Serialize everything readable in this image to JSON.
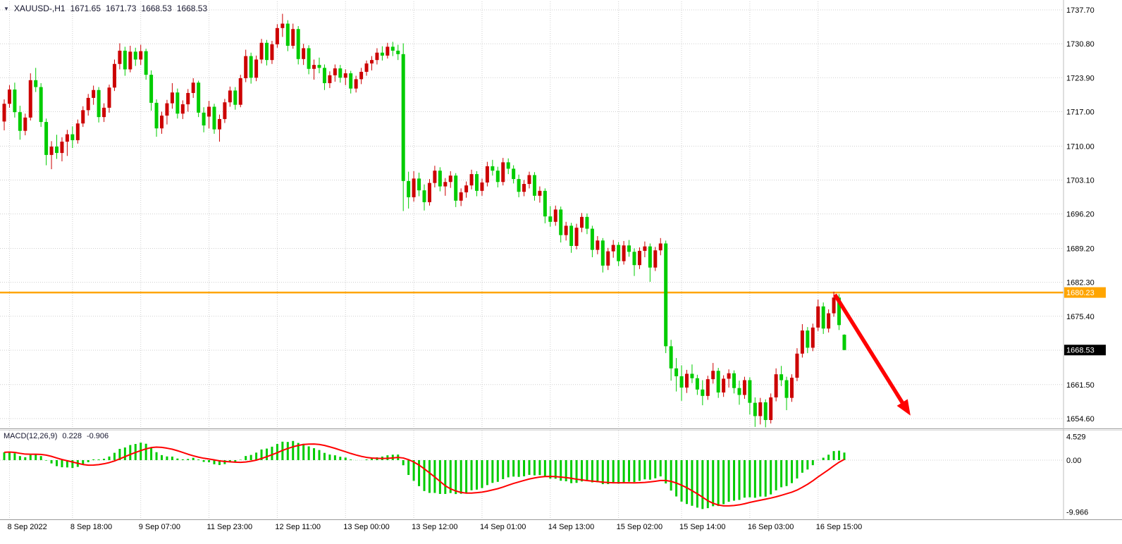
{
  "header": {
    "dropdown_icon": "▼",
    "symbol": "XAUUSD-,H1",
    "open": "1671.65",
    "high": "1671.73",
    "low": "1668.53",
    "close": "1668.53"
  },
  "indicator_header": {
    "label": "MACD(12,26,9)",
    "main_value": "0.228",
    "signal_value": "-0.906"
  },
  "price_axis": {
    "labels": [
      "1737.70",
      "1730.80",
      "1723.90",
      "1717.00",
      "1710.00",
      "1703.10",
      "1696.20",
      "1689.20",
      "1682.30",
      "1675.40",
      "1661.50",
      "1654.60"
    ],
    "current": {
      "text": "1668.53",
      "value": 1668.53
    },
    "hline_label": {
      "text": "1680.23",
      "value": 1680.23
    }
  },
  "macd_axis": {
    "labels": [
      {
        "text": "4.529",
        "value": 4.529
      },
      {
        "text": "0.00",
        "value": 0
      },
      {
        "text": "-9.966",
        "value": -9.966
      }
    ]
  },
  "time_axis": {
    "labels": [
      {
        "text": "8 Sep 2022",
        "index": 1
      },
      {
        "text": "8 Sep 18:00",
        "index": 13
      },
      {
        "text": "9 Sep 07:00",
        "index": 26
      },
      {
        "text": "11 Sep 23:00",
        "index": 39
      },
      {
        "text": "12 Sep 11:00",
        "index": 52
      },
      {
        "text": "13 Sep 00:00",
        "index": 65
      },
      {
        "text": "13 Sep 12:00",
        "index": 78
      },
      {
        "text": "14 Sep 01:00",
        "index": 91
      },
      {
        "text": "14 Sep 13:00",
        "index": 104
      },
      {
        "text": "15 Sep 02:00",
        "index": 117
      },
      {
        "text": "15 Sep 14:00",
        "index": 129
      },
      {
        "text": "16 Sep 03:00",
        "index": 142
      },
      {
        "text": "16 Sep 15:00",
        "index": 155
      }
    ]
  },
  "chart_data": {
    "type": "candlestick",
    "symbol": "XAUUSD-",
    "timeframe": "H1",
    "current_ohlc": {
      "open": 1671.65,
      "high": 1671.73,
      "low": 1668.53,
      "close": 1668.53
    },
    "price_grid": [
      1737.7,
      1730.8,
      1723.9,
      1717.0,
      1710.0,
      1703.1,
      1696.2,
      1689.2,
      1682.3,
      1675.4,
      1668.5,
      1661.5,
      1654.6
    ],
    "macd": {
      "params": [
        12,
        26,
        9
      ],
      "main_last": 0.228,
      "signal_last": -0.906,
      "axis_max": 4.529,
      "axis_min": -9.966
    },
    "annotations": [
      {
        "type": "hline",
        "price": 1680.23,
        "color": "#FFA500",
        "label": "1680.23"
      },
      {
        "type": "arrow",
        "from_index": 158.2,
        "from_price": 1679.8,
        "to_index": 172.6,
        "to_price": 1655.2,
        "color": "#FF0000",
        "direction": "down-right"
      }
    ],
    "colors": {
      "bull": "#CC0000",
      "bear": "#00CC00",
      "grid": "#CFCFCF",
      "macd_hist": "#00CC00",
      "macd_signal": "#FF0000",
      "current_price_bg": "#000000",
      "hline_label_bg": "#FFA500",
      "axis_text": "#000000"
    },
    "candles": [
      [
        1715.0,
        1719.5,
        1713.2,
        1718.6
      ],
      [
        1718.6,
        1722.4,
        1717.8,
        1721.5
      ],
      [
        1721.5,
        1722.9,
        1715.8,
        1716.9
      ],
      [
        1716.9,
        1718.2,
        1711.3,
        1713.1
      ],
      [
        1713.1,
        1716.6,
        1712.2,
        1715.8
      ],
      [
        1715.8,
        1724.8,
        1715.2,
        1723.4
      ],
      [
        1723.4,
        1725.9,
        1721.0,
        1722.0
      ],
      [
        1722.0,
        1722.8,
        1713.9,
        1714.9
      ],
      [
        1714.9,
        1715.6,
        1706.1,
        1708.2
      ],
      [
        1708.2,
        1711.0,
        1705.3,
        1709.9
      ],
      [
        1709.9,
        1712.3,
        1707.4,
        1708.6
      ],
      [
        1708.6,
        1711.8,
        1706.9,
        1710.9
      ],
      [
        1710.9,
        1713.3,
        1708.0,
        1712.4
      ],
      [
        1712.4,
        1714.0,
        1709.6,
        1711.2
      ],
      [
        1711.2,
        1715.4,
        1710.5,
        1714.6
      ],
      [
        1714.6,
        1718.1,
        1713.9,
        1717.3
      ],
      [
        1717.3,
        1720.6,
        1716.2,
        1719.8
      ],
      [
        1719.8,
        1722.3,
        1718.4,
        1721.4
      ],
      [
        1721.4,
        1722.0,
        1714.8,
        1715.9
      ],
      [
        1715.9,
        1718.7,
        1714.9,
        1717.8
      ],
      [
        1717.8,
        1722.5,
        1716.8,
        1721.9
      ],
      [
        1721.9,
        1727.6,
        1721.2,
        1726.7
      ],
      [
        1726.7,
        1730.9,
        1725.6,
        1729.4
      ],
      [
        1729.4,
        1730.2,
        1724.3,
        1725.6
      ],
      [
        1725.6,
        1730.4,
        1725.0,
        1729.2
      ],
      [
        1729.2,
        1730.0,
        1726.3,
        1727.6
      ],
      [
        1727.6,
        1730.6,
        1726.5,
        1729.3
      ],
      [
        1729.3,
        1729.8,
        1723.5,
        1724.5
      ],
      [
        1724.5,
        1725.4,
        1717.2,
        1718.8
      ],
      [
        1718.8,
        1719.5,
        1711.9,
        1713.6
      ],
      [
        1713.6,
        1717.0,
        1712.5,
        1716.2
      ],
      [
        1716.2,
        1719.4,
        1714.4,
        1718.7
      ],
      [
        1718.7,
        1722.8,
        1717.6,
        1720.9
      ],
      [
        1720.9,
        1721.7,
        1715.6,
        1716.6
      ],
      [
        1716.6,
        1719.3,
        1715.5,
        1718.5
      ],
      [
        1718.5,
        1721.6,
        1717.0,
        1720.8
      ],
      [
        1720.8,
        1723.8,
        1719.8,
        1722.9
      ],
      [
        1722.9,
        1723.3,
        1715.9,
        1716.8
      ],
      [
        1716.8,
        1717.9,
        1712.8,
        1714.2
      ],
      [
        1716.0,
        1719.2,
        1713.6,
        1718.0
      ],
      [
        1718.0,
        1718.6,
        1712.5,
        1713.4
      ],
      [
        1713.4,
        1716.4,
        1710.9,
        1715.5
      ],
      [
        1715.5,
        1719.6,
        1714.7,
        1718.9
      ],
      [
        1718.9,
        1722.1,
        1718.0,
        1721.3
      ],
      [
        1721.3,
        1722.0,
        1717.4,
        1718.4
      ],
      [
        1718.4,
        1724.5,
        1717.9,
        1723.8
      ],
      [
        1723.8,
        1729.6,
        1723.0,
        1728.3
      ],
      [
        1728.3,
        1729.0,
        1722.7,
        1723.9
      ],
      [
        1723.9,
        1728.4,
        1723.2,
        1727.6
      ],
      [
        1727.6,
        1731.8,
        1726.8,
        1731.0
      ],
      [
        1731.0,
        1731.6,
        1726.4,
        1727.5
      ],
      [
        1727.5,
        1731.4,
        1726.7,
        1730.7
      ],
      [
        1730.7,
        1734.8,
        1730.0,
        1734.0
      ],
      [
        1734.0,
        1736.9,
        1732.2,
        1734.9
      ],
      [
        1734.9,
        1735.6,
        1729.3,
        1730.4
      ],
      [
        1730.4,
        1734.9,
        1729.8,
        1733.8
      ],
      [
        1733.8,
        1734.4,
        1726.6,
        1727.7
      ],
      [
        1727.7,
        1730.8,
        1726.5,
        1729.9
      ],
      [
        1729.9,
        1730.5,
        1724.6,
        1725.7
      ],
      [
        1725.7,
        1727.6,
        1723.5,
        1726.5
      ],
      [
        1726.5,
        1728.0,
        1724.8,
        1725.9
      ],
      [
        1725.9,
        1726.6,
        1721.4,
        1722.8
      ],
      [
        1722.8,
        1725.2,
        1721.8,
        1724.4
      ],
      [
        1724.4,
        1726.6,
        1723.1,
        1725.8
      ],
      [
        1725.8,
        1726.5,
        1722.9,
        1723.9
      ],
      [
        1723.9,
        1725.6,
        1722.4,
        1724.8
      ],
      [
        1724.8,
        1725.3,
        1720.7,
        1721.7
      ],
      [
        1721.7,
        1724.3,
        1720.9,
        1723.6
      ],
      [
        1723.6,
        1725.9,
        1722.6,
        1725.1
      ],
      [
        1725.1,
        1727.4,
        1724.3,
        1726.8
      ],
      [
        1726.8,
        1728.3,
        1725.4,
        1727.5
      ],
      [
        1727.5,
        1729.9,
        1726.6,
        1729.0
      ],
      [
        1729.0,
        1730.3,
        1727.4,
        1728.4
      ],
      [
        1728.4,
        1731.0,
        1727.8,
        1730.2
      ],
      [
        1730.2,
        1731.2,
        1728.3,
        1729.4
      ],
      [
        1729.4,
        1730.6,
        1727.5,
        1728.7
      ],
      [
        1728.7,
        1730.9,
        1696.8,
        1702.9
      ],
      [
        1702.9,
        1704.8,
        1697.3,
        1699.6
      ],
      [
        1699.6,
        1704.9,
        1698.7,
        1703.4
      ],
      [
        1703.4,
        1704.6,
        1699.8,
        1701.0
      ],
      [
        1701.0,
        1702.2,
        1696.9,
        1698.6
      ],
      [
        1698.6,
        1703.3,
        1697.9,
        1702.5
      ],
      [
        1702.5,
        1706.0,
        1701.6,
        1705.0
      ],
      [
        1705.0,
        1705.7,
        1700.8,
        1701.8
      ],
      [
        1701.8,
        1703.5,
        1699.9,
        1702.7
      ],
      [
        1702.7,
        1704.9,
        1701.5,
        1704.0
      ],
      [
        1704.0,
        1704.5,
        1697.6,
        1698.9
      ],
      [
        1698.9,
        1701.4,
        1697.8,
        1700.6
      ],
      [
        1700.6,
        1702.8,
        1699.5,
        1702.0
      ],
      [
        1702.0,
        1705.2,
        1701.2,
        1704.3
      ],
      [
        1704.3,
        1704.9,
        1699.8,
        1700.9
      ],
      [
        1700.9,
        1703.4,
        1699.9,
        1702.6
      ],
      [
        1702.6,
        1706.8,
        1701.8,
        1705.9
      ],
      [
        1705.9,
        1707.2,
        1704.0,
        1705.0
      ],
      [
        1705.0,
        1705.8,
        1701.6,
        1702.7
      ],
      [
        1702.7,
        1707.6,
        1702.0,
        1706.7
      ],
      [
        1706.7,
        1707.5,
        1704.3,
        1705.4
      ],
      [
        1705.4,
        1706.1,
        1702.4,
        1703.3
      ],
      [
        1703.3,
        1704.2,
        1699.6,
        1700.7
      ],
      [
        1700.7,
        1703.1,
        1699.8,
        1702.3
      ],
      [
        1702.3,
        1704.8,
        1701.4,
        1704.1
      ],
      [
        1704.1,
        1704.7,
        1698.9,
        1699.9
      ],
      [
        1699.9,
        1701.8,
        1698.5,
        1700.9
      ],
      [
        1700.9,
        1701.4,
        1694.3,
        1695.7
      ],
      [
        1695.7,
        1697.8,
        1693.6,
        1694.6
      ],
      [
        1694.6,
        1697.9,
        1693.8,
        1697.1
      ],
      [
        1697.1,
        1697.7,
        1690.4,
        1691.9
      ],
      [
        1691.9,
        1694.6,
        1690.8,
        1693.8
      ],
      [
        1693.8,
        1694.4,
        1688.3,
        1689.7
      ],
      [
        1689.7,
        1694.2,
        1689.0,
        1693.4
      ],
      [
        1693.4,
        1696.4,
        1692.5,
        1695.6
      ],
      [
        1695.6,
        1696.3,
        1692.1,
        1693.2
      ],
      [
        1693.2,
        1693.8,
        1687.4,
        1688.9
      ],
      [
        1688.9,
        1691.7,
        1688.0,
        1690.8
      ],
      [
        1690.8,
        1691.3,
        1684.3,
        1685.7
      ],
      [
        1685.7,
        1689.3,
        1684.8,
        1688.6
      ],
      [
        1688.6,
        1690.9,
        1687.3,
        1689.9
      ],
      [
        1689.9,
        1690.5,
        1685.6,
        1686.6
      ],
      [
        1686.6,
        1690.7,
        1685.9,
        1689.8
      ],
      [
        1689.8,
        1690.9,
        1687.5,
        1688.5
      ],
      [
        1688.5,
        1689.2,
        1683.6,
        1685.8
      ],
      [
        1685.8,
        1689.4,
        1685.0,
        1688.7
      ],
      [
        1688.7,
        1690.6,
        1687.4,
        1689.6
      ],
      [
        1689.6,
        1690.2,
        1682.4,
        1685.3
      ],
      [
        1685.3,
        1689.5,
        1684.6,
        1688.8
      ],
      [
        1688.8,
        1691.3,
        1687.8,
        1690.2
      ],
      [
        1690.2,
        1690.8,
        1667.9,
        1669.3
      ],
      [
        1669.3,
        1670.6,
        1662.3,
        1664.8
      ],
      [
        1664.8,
        1666.9,
        1660.1,
        1663.2
      ],
      [
        1663.2,
        1665.4,
        1658.2,
        1660.9
      ],
      [
        1660.9,
        1664.5,
        1659.8,
        1663.7
      ],
      [
        1663.7,
        1665.6,
        1661.8,
        1662.8
      ],
      [
        1662.8,
        1663.5,
        1659.4,
        1660.5
      ],
      [
        1660.5,
        1662.4,
        1657.3,
        1659.2
      ],
      [
        1659.2,
        1663.3,
        1658.4,
        1662.6
      ],
      [
        1662.6,
        1665.9,
        1661.7,
        1664.3
      ],
      [
        1664.3,
        1664.9,
        1658.8,
        1659.9
      ],
      [
        1659.9,
        1663.4,
        1659.0,
        1662.7
      ],
      [
        1662.7,
        1664.6,
        1660.9,
        1663.8
      ],
      [
        1663.8,
        1664.4,
        1659.7,
        1660.8
      ],
      [
        1660.8,
        1662.3,
        1657.4,
        1659.4
      ],
      [
        1659.4,
        1663.1,
        1658.6,
        1662.4
      ],
      [
        1662.4,
        1663.0,
        1655.4,
        1657.8
      ],
      [
        1657.8,
        1658.9,
        1652.9,
        1655.1
      ],
      [
        1655.1,
        1658.8,
        1653.4,
        1657.9
      ],
      [
        1657.9,
        1658.5,
        1652.8,
        1654.3
      ],
      [
        1654.3,
        1659.7,
        1653.6,
        1658.9
      ],
      [
        1658.9,
        1664.8,
        1658.1,
        1663.6
      ],
      [
        1663.6,
        1665.3,
        1661.2,
        1662.4
      ],
      [
        1662.4,
        1663.1,
        1656.3,
        1658.8
      ],
      [
        1658.8,
        1663.6,
        1658.0,
        1662.9
      ],
      [
        1662.9,
        1668.9,
        1662.2,
        1667.8
      ],
      [
        1667.8,
        1673.8,
        1667.0,
        1672.5
      ],
      [
        1672.5,
        1673.2,
        1667.9,
        1669.0
      ],
      [
        1669.0,
        1673.9,
        1668.3,
        1673.1
      ],
      [
        1673.1,
        1678.8,
        1672.4,
        1677.4
      ],
      [
        1677.4,
        1678.2,
        1671.8,
        1672.9
      ],
      [
        1672.9,
        1676.8,
        1672.1,
        1676.0
      ],
      [
        1676.0,
        1680.4,
        1675.3,
        1679.2
      ],
      [
        1679.2,
        1679.9,
        1672.6,
        1673.6
      ],
      [
        1671.65,
        1671.73,
        1668.53,
        1668.53
      ]
    ]
  }
}
